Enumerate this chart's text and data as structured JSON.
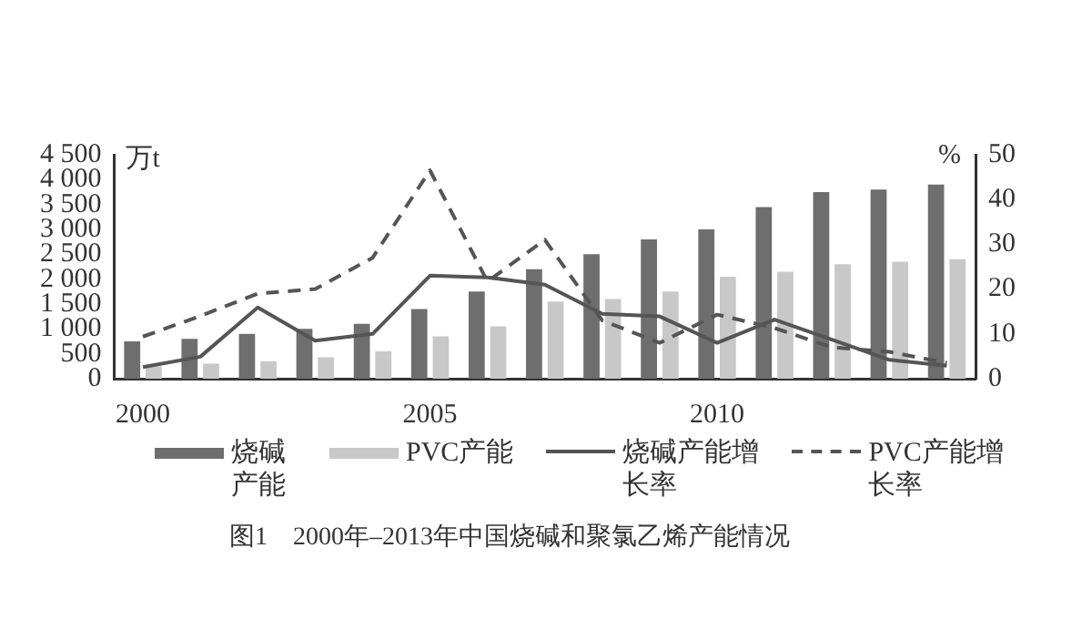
{
  "chart_data": {
    "type": "bar",
    "title": "图1　2000年–2013年中国烧碱和聚氯乙烯产能情况",
    "ylabel": "万t",
    "y2label": "%",
    "categories": [
      "2000",
      null,
      null,
      null,
      null,
      "2005",
      null,
      null,
      null,
      null,
      "2010",
      null,
      null,
      null,
      null
    ],
    "series": [
      {
        "name": "烧碱产能",
        "color": "#6e6e6e",
        "values": [
          750,
          800,
          900,
          1000,
          1100,
          1400,
          1750,
          2200,
          2500,
          2800,
          3000,
          3450,
          3750,
          3800,
          3900
        ]
      },
      {
        "name": "PVC产能",
        "color": "#c8c8c8",
        "values": [
          250,
          300,
          350,
          430,
          550,
          850,
          1050,
          1550,
          1600,
          1750,
          2050,
          2150,
          2300,
          2350,
          2400
        ]
      },
      {
        "name": "烧碱产能增长率",
        "type": "line",
        "axis": "y2",
        "color": "#555555",
        "line_style": "solid",
        "values": [
          2.6,
          4.9,
          15.9,
          8.5,
          10,
          23,
          22.6,
          21,
          14.5,
          13.9,
          8,
          13.2,
          8.7,
          4.2,
          2.9
        ]
      },
      {
        "name": "PVC产能增长率",
        "type": "line",
        "axis": "y2",
        "color": "#555555",
        "line_style": "dashed",
        "values": [
          9.4,
          14,
          19,
          20,
          27,
          46.5,
          21.7,
          31,
          13,
          8,
          14.3,
          11.3,
          7,
          6,
          3.5
        ]
      }
    ],
    "ylim": [
      0,
      4500
    ],
    "yticks": [
      0,
      500,
      {
        "value": 1000,
        "label": "1 000"
      },
      {
        "value": 1500,
        "label": "1 500"
      },
      {
        "value": 2000,
        "label": "2 000"
      },
      {
        "value": 2500,
        "label": "2 500"
      },
      {
        "value": 3000,
        "label": "3 000"
      },
      {
        "value": 3500,
        "label": "3 500"
      },
      {
        "value": 4000,
        "label": "4 000"
      },
      {
        "value": 4500,
        "label": "4 500"
      }
    ],
    "y2lim": [
      0,
      50
    ],
    "y2ticks": [
      0,
      10,
      20,
      30,
      40,
      50
    ],
    "grid": false,
    "legend": "bottom",
    "marker": "none"
  }
}
